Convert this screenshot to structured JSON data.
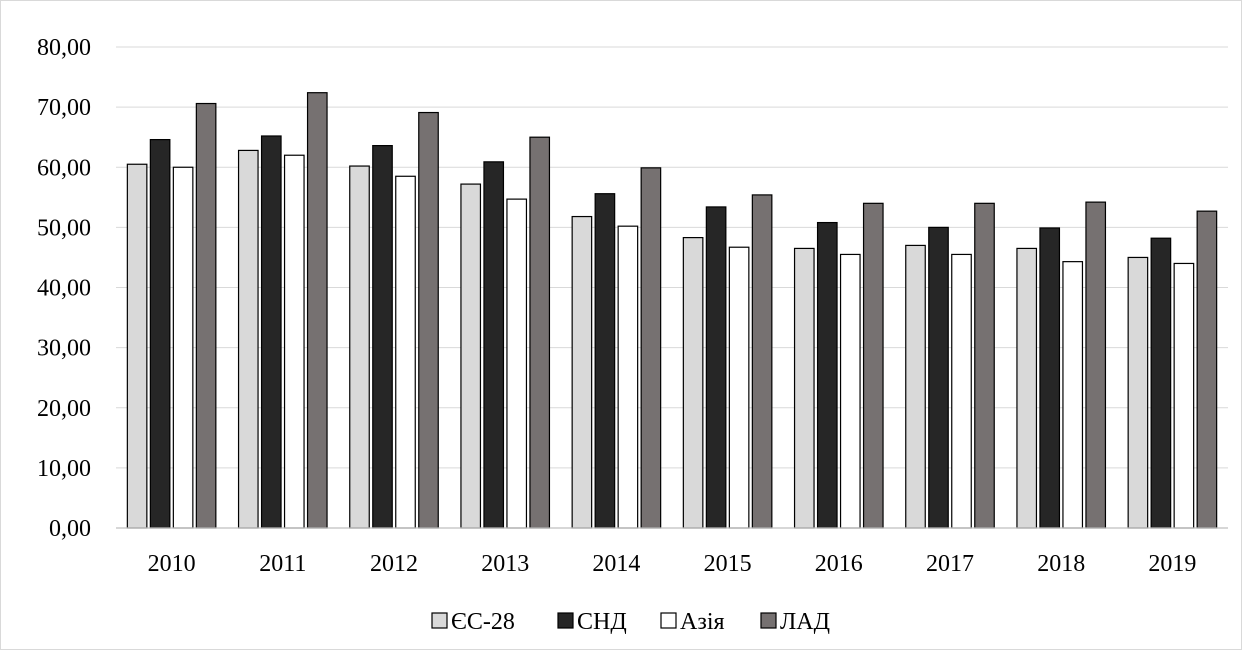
{
  "chart_data": {
    "type": "bar",
    "title": "",
    "xlabel": "",
    "ylabel": "",
    "categories": [
      "2010",
      "2011",
      "2012",
      "2013",
      "2014",
      "2015",
      "2016",
      "2017",
      "2018",
      "2019"
    ],
    "series": [
      {
        "name": "ЄС-28",
        "color": "#d9d9d9",
        "values": [
          60.5,
          62.8,
          60.2,
          57.2,
          51.8,
          48.3,
          46.5,
          47.0,
          46.5,
          45.0
        ]
      },
      {
        "name": "СНД",
        "color": "#262626",
        "values": [
          64.6,
          65.2,
          63.6,
          60.9,
          55.6,
          53.4,
          50.8,
          50.0,
          49.9,
          48.2
        ]
      },
      {
        "name": "Азія",
        "color": "#ffffff",
        "values": [
          60.0,
          62.0,
          58.5,
          54.7,
          50.2,
          46.7,
          45.5,
          45.5,
          44.3,
          44.0
        ]
      },
      {
        "name": "ЛАД",
        "color": "#767171",
        "values": [
          70.6,
          72.4,
          69.1,
          65.0,
          59.9,
          55.4,
          54.0,
          54.0,
          54.2,
          52.7
        ]
      }
    ],
    "ylim": [
      0,
      80
    ],
    "yticks": [
      "0,00",
      "10,00",
      "20,00",
      "30,00",
      "40,00",
      "50,00",
      "60,00",
      "70,00",
      "80,00"
    ],
    "grid": true,
    "legend_position": "bottom"
  }
}
